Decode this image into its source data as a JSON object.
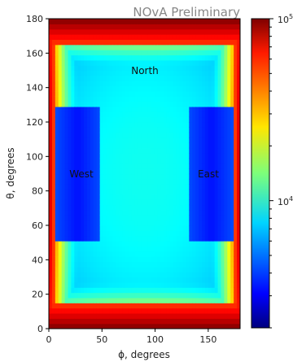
{
  "chart_data": {
    "type": "heatmap",
    "title": "NOvA Preliminary",
    "xlabel": "ϕ, degrees",
    "ylabel": "θ, degrees",
    "xlim": [
      0,
      180
    ],
    "ylim": [
      0,
      180
    ],
    "xticks": [
      "0",
      "50",
      "100",
      "150"
    ],
    "yticks": [
      "0",
      "20",
      "40",
      "60",
      "80",
      "100",
      "120",
      "140",
      "160",
      "180"
    ],
    "annotations": [
      {
        "text": "North",
        "x": 90,
        "y": 148
      },
      {
        "text": "West",
        "x": 30,
        "y": 89
      },
      {
        "text": "East",
        "x": 150,
        "y": 89
      }
    ],
    "colorbar": {
      "scale": "log",
      "colormap": "jet",
      "range": [
        2000,
        100000
      ],
      "tick_labels": [
        "10^4",
        "10^5"
      ]
    },
    "grid": false
  }
}
